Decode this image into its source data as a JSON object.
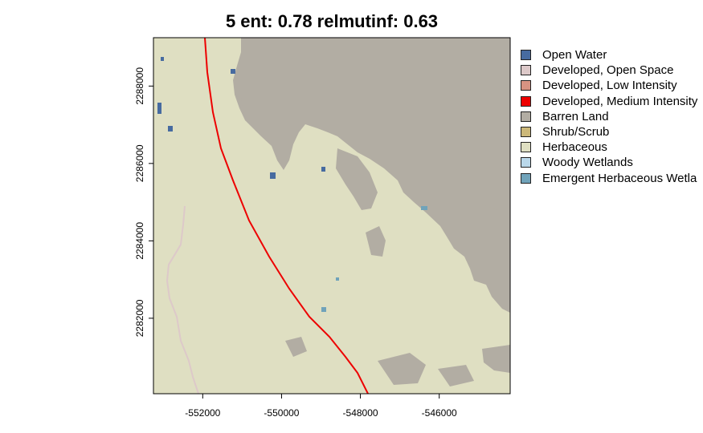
{
  "title": "5 ent: 0.78 relmutinf: 0.63",
  "map": {
    "x_ticks": [
      {
        "value": -552000,
        "label": "-552000"
      },
      {
        "value": -550000,
        "label": "-550000"
      },
      {
        "value": -548000,
        "label": "-548000"
      },
      {
        "value": -546000,
        "label": "-546000"
      }
    ],
    "y_ticks": [
      {
        "value": 2282000,
        "label": "2282000"
      },
      {
        "value": 2284000,
        "label": "2284000"
      },
      {
        "value": 2286000,
        "label": "2286000"
      },
      {
        "value": 2288000,
        "label": "2288000"
      }
    ],
    "xlim": [
      -553250,
      -544200
    ],
    "ylim": [
      2280050,
      2289250
    ]
  },
  "legend": {
    "items": [
      {
        "label": "Open Water",
        "color": "#476ba0"
      },
      {
        "label": "Developed, Open Space",
        "color": "#ddc9c9"
      },
      {
        "label": "Developed, Low Intensity",
        "color": "#d89382"
      },
      {
        "label": "Developed, Medium Intensity",
        "color": "#ed0000"
      },
      {
        "label": "Barren Land",
        "color": "#b2ada3"
      },
      {
        "label": "Shrub/Scrub",
        "color": "#ccb879"
      },
      {
        "label": "Herbaceous",
        "color": "#dfdfc2"
      },
      {
        "label": "Woody Wetlands",
        "color": "#bad8ea"
      },
      {
        "label": "Emergent Herbaceous Wetla",
        "color": "#70a3ba"
      }
    ]
  },
  "colors": {
    "herbaceous": "#dfdfc2",
    "barren": "#b2ada3",
    "road": "#ed0000",
    "trail": "#ddc9c9",
    "water": "#476ba0",
    "wetland": "#70a3ba",
    "shrub": "#ccb879"
  }
}
